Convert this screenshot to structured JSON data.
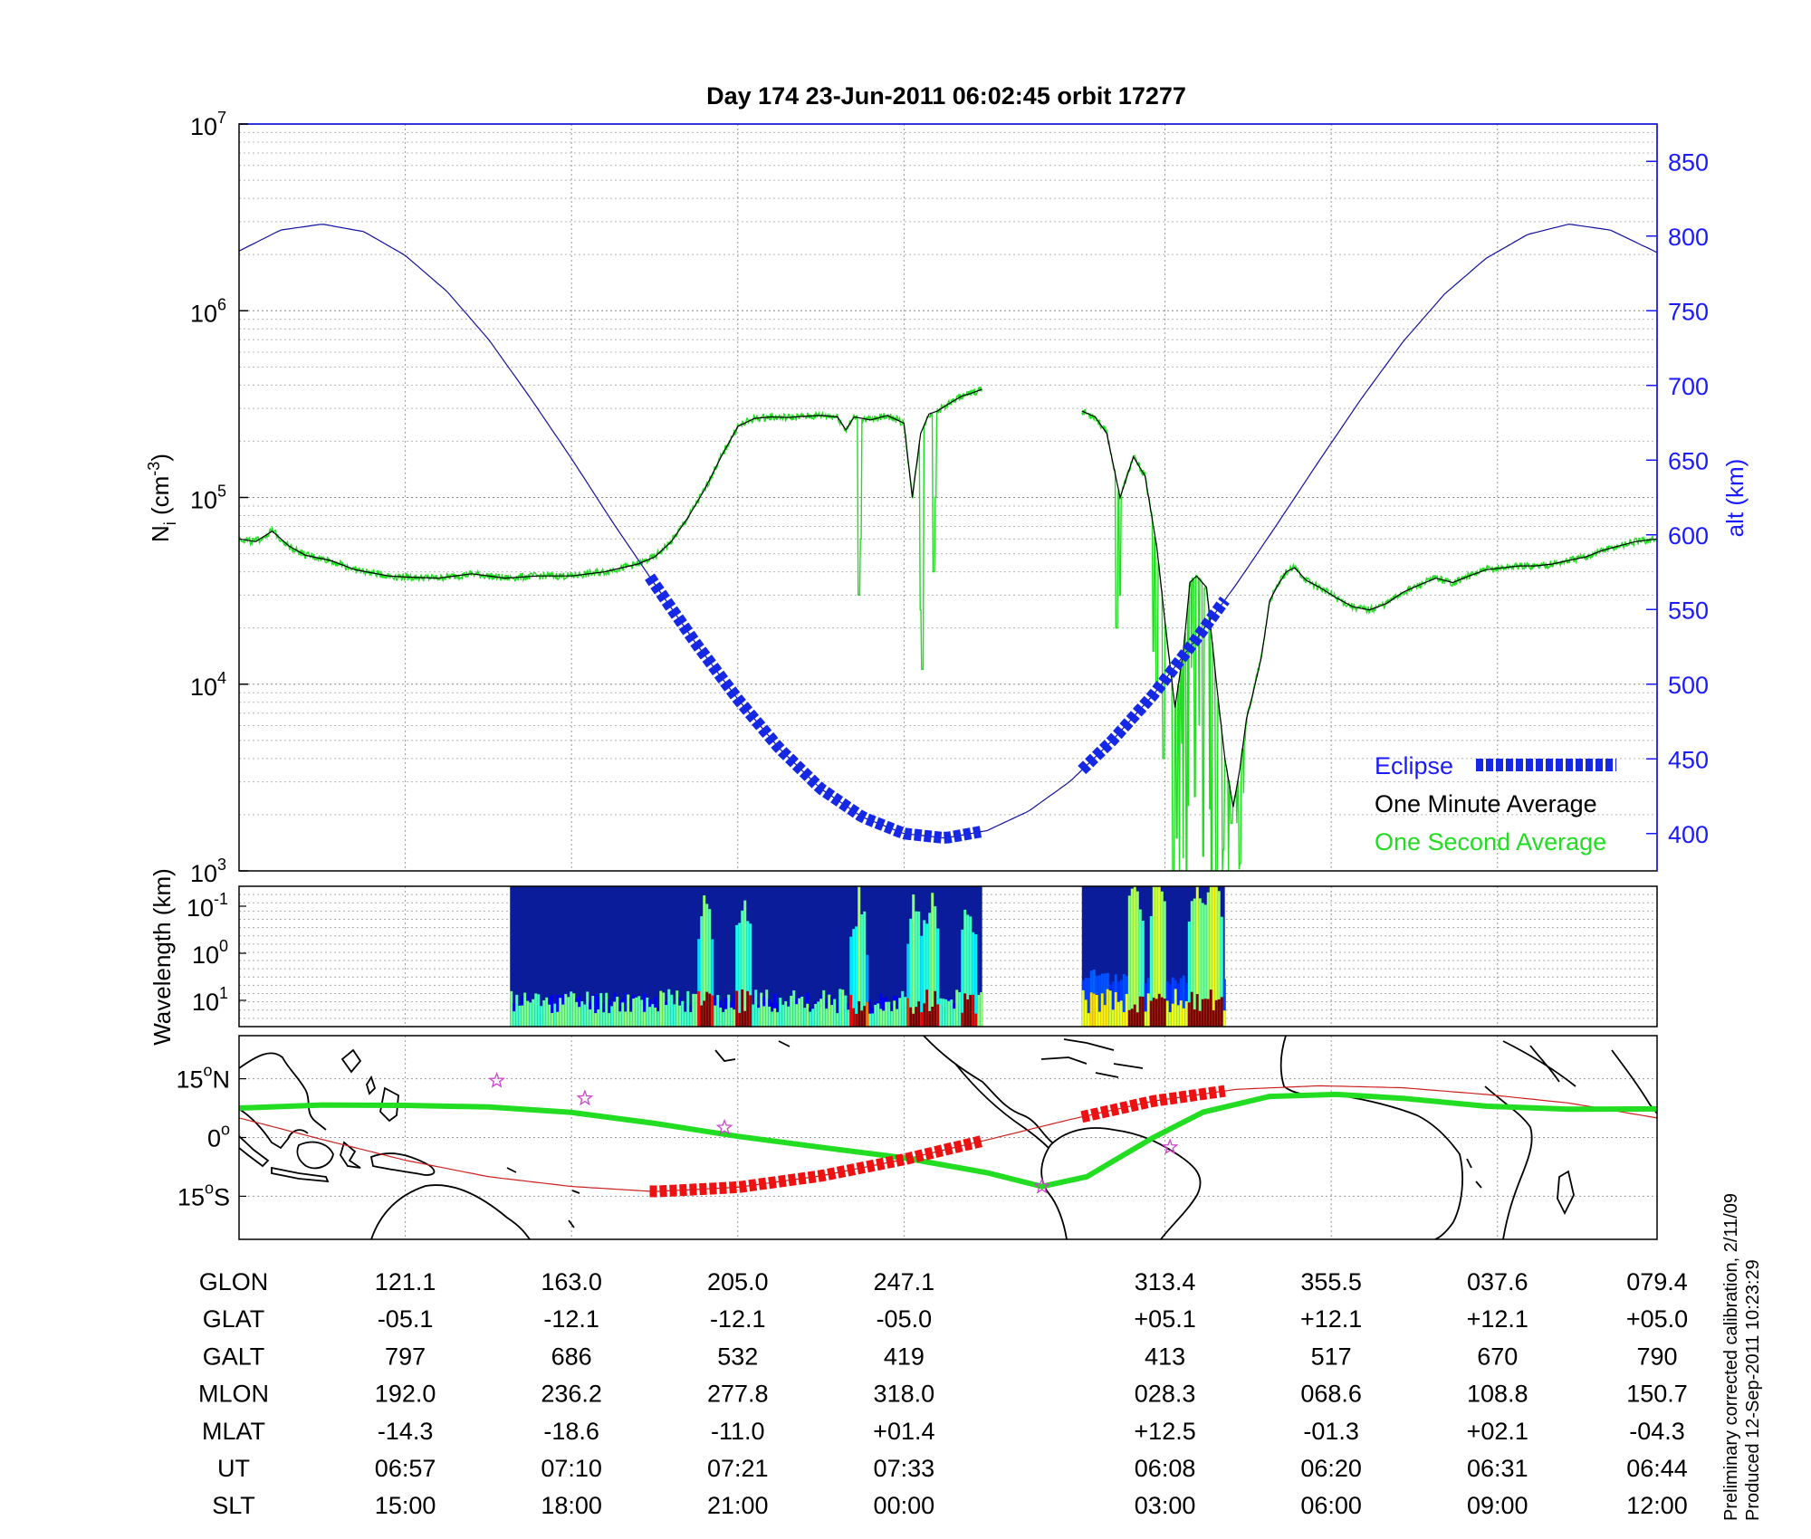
{
  "chart_data": [
    {
      "type": "line",
      "title": "Day 174  23-Jun-2011 06:02:45   orbit 17277",
      "ylabel_main": "N",
      "ylabel_sub": "i",
      "ylabel_unit_open": " (cm",
      "ylabel_unit_exp": "-3",
      "ylabel_unit_close": ")",
      "y2label": "alt (km)",
      "yscale": "log",
      "ylim": [
        1000,
        10000000
      ],
      "yticks": [
        {
          "base": "10",
          "exp": "3"
        },
        {
          "base": "10",
          "exp": "4"
        },
        {
          "base": "10",
          "exp": "5"
        },
        {
          "base": "10",
          "exp": "6"
        },
        {
          "base": "10",
          "exp": "7"
        }
      ],
      "y2lim": [
        375,
        875
      ],
      "y2ticks": [
        "400",
        "450",
        "500",
        "550",
        "600",
        "650",
        "700",
        "750",
        "800",
        "850"
      ],
      "xlim": [
        0,
        8.53
      ],
      "grid": true,
      "legend": [
        {
          "label": "Eclipse",
          "color": "#1428e6"
        },
        {
          "label": "One Minute Average",
          "color": "#000000"
        },
        {
          "label": "One Second Average",
          "color": "#22dd22"
        }
      ],
      "series": [
        {
          "name": "Altitude (alt km)",
          "color": "#1010a0",
          "x": [
            0,
            0.25,
            0.5,
            0.75,
            1.0,
            1.25,
            1.5,
            1.75,
            2.0,
            2.25,
            2.5,
            2.75,
            3.0,
            3.25,
            3.5,
            3.75,
            4.0,
            4.25,
            4.5,
            4.75,
            5.0,
            5.25,
            5.5,
            5.75,
            6.0,
            6.25,
            6.5,
            6.75,
            7.0,
            7.25,
            7.5,
            7.75,
            8.0,
            8.25,
            8.53
          ],
          "values": [
            790,
            804,
            808,
            803,
            787,
            763,
            731,
            692,
            651,
            608,
            567,
            527,
            490,
            457,
            430,
            411,
            400,
            397,
            402,
            415,
            435,
            462,
            493,
            529,
            567,
            608,
            650,
            691,
            729,
            761,
            785,
            801,
            808,
            804,
            789
          ]
        },
        {
          "name": "One Minute Average (Ni)",
          "color": "#000000",
          "x": [
            0,
            0.1,
            0.2,
            0.3,
            0.4,
            0.55,
            0.7,
            0.9,
            1.0,
            1.2,
            1.4,
            1.6,
            1.8,
            2.0,
            2.2,
            2.4,
            2.5,
            2.6,
            2.7,
            2.8,
            2.9,
            3.0,
            3.1,
            3.2,
            3.3,
            3.4,
            3.5,
            3.6,
            3.65,
            3.7,
            3.8,
            3.9,
            4.0,
            4.05,
            4.1,
            4.15,
            4.2,
            4.25,
            4.3,
            4.35,
            4.4,
            4.47
          ],
          "values": [
            60000,
            58000,
            66000,
            55000,
            49000,
            46000,
            41000,
            38000,
            37500,
            37000,
            39000,
            37000,
            38000,
            38000,
            40000,
            44000,
            48000,
            58000,
            78000,
            110000,
            165000,
            240000,
            265000,
            270000,
            268000,
            272000,
            275000,
            270000,
            230000,
            270000,
            260000,
            275000,
            250000,
            100000,
            220000,
            280000,
            290000,
            310000,
            330000,
            350000,
            360000,
            380000
          ]
        },
        {
          "name": "One Minute Average (Ni, segment 2)",
          "color": "#000000",
          "x": [
            5.07,
            5.15,
            5.22,
            5.3,
            5.38,
            5.45,
            5.52,
            5.58,
            5.63,
            5.68,
            5.72,
            5.76,
            5.82,
            5.88,
            5.93,
            5.98,
            6.02,
            6.06,
            6.1,
            6.15,
            6.2,
            6.25,
            6.3,
            6.35,
            6.42,
            6.5,
            6.6,
            6.7,
            6.8,
            6.9,
            7.0,
            7.1,
            7.2,
            7.3,
            7.4,
            7.5,
            7.6,
            7.7,
            7.8,
            7.9,
            8.0,
            8.1,
            8.2,
            8.3,
            8.4,
            8.53
          ],
          "values": [
            290000,
            270000,
            220000,
            100000,
            165000,
            130000,
            55000,
            18000,
            7500,
            15000,
            35000,
            38000,
            33000,
            10000,
            4000,
            2200,
            3500,
            6500,
            9000,
            14000,
            28000,
            34000,
            40000,
            42000,
            36000,
            33000,
            29000,
            26000,
            25000,
            27000,
            31000,
            34000,
            37000,
            35000,
            38000,
            41000,
            42000,
            43000,
            43000,
            44000,
            46000,
            48000,
            52000,
            55000,
            58000,
            60000
          ]
        },
        {
          "name": "One Second Average (Ni)",
          "color": "#22dd22",
          "note": "noisy version of one-minute average with deep dropouts near x 3.73, 4.1, 4.18, 5.28, 5.52, 5.62–6.05"
        },
        {
          "name": "Eclipse",
          "color": "#1428e6",
          "x_ranges": [
            [
              2.47,
              4.47
            ],
            [
              5.07,
              5.93
            ]
          ],
          "note": "dotted overlay on the altitude curve"
        }
      ]
    },
    {
      "type": "heatmap",
      "ylabel": "Wavelength (km)",
      "yticks": [
        {
          "base": "10",
          "exp": "-1"
        },
        {
          "base": "10",
          "exp": "0"
        },
        {
          "base": "10",
          "exp": "1"
        }
      ],
      "yscale": "log",
      "data_x_ranges": [
        [
          1.63,
          4.47
        ],
        [
          5.07,
          5.93
        ]
      ],
      "colormap": "jet",
      "bright_columns_x": [
        2.8,
        3.02,
        3.72,
        4.05,
        4.15,
        4.38,
        5.38,
        5.52,
        5.75,
        5.85
      ]
    },
    {
      "type": "line",
      "subtype": "map",
      "yticks": [
        {
          "deg": "15",
          "hemi": "N"
        },
        {
          "deg": "0",
          "hemi": ""
        },
        {
          "deg": "15",
          "hemi": "S"
        }
      ],
      "ylim": [
        -26,
        26
      ],
      "series": [
        {
          "name": "Magnetic equator (green)",
          "color": "#22dd22",
          "x": [
            0,
            0.5,
            1.0,
            1.5,
            2.0,
            2.5,
            3.0,
            3.5,
            4.0,
            4.5,
            4.83,
            5.1,
            5.3,
            5.5,
            5.8,
            6.2,
            6.6,
            7.0,
            7.5,
            8.0,
            8.53
          ],
          "values": [
            7.5,
            8.3,
            8.2,
            7.8,
            6.4,
            3.6,
            0.3,
            -2.5,
            -5.2,
            -9.0,
            -12.5,
            -10.0,
            -5.0,
            0.0,
            6.5,
            10.5,
            11.0,
            10.0,
            8.0,
            7.2,
            7.3
          ]
        },
        {
          "name": "Satellite ground track (red)",
          "color": "#cc2020",
          "x": [
            0,
            0.5,
            1.0,
            1.5,
            2.0,
            2.5,
            3.0,
            3.5,
            4.0,
            4.5,
            5.0,
            5.5,
            6.0,
            6.5,
            7.0,
            7.5,
            8.0,
            8.53
          ],
          "values": [
            5.0,
            -0.5,
            -5.8,
            -10.0,
            -12.5,
            -13.8,
            -12.7,
            -9.8,
            -5.6,
            -0.6,
            4.6,
            9.3,
            12.3,
            13.2,
            12.7,
            11.0,
            8.8,
            5.0
          ]
        }
      ],
      "eclipse_x_ranges": [
        [
          2.47,
          4.47
        ],
        [
          5.07,
          5.93
        ]
      ],
      "star_markers": [
        {
          "x": 1.55,
          "y": 14.5
        },
        {
          "x": 2.08,
          "y": 10.0
        },
        {
          "x": 2.92,
          "y": 2.5
        },
        {
          "x": 4.83,
          "y": -12.5
        },
        {
          "x": 5.6,
          "y": -2.5
        }
      ]
    }
  ],
  "table": {
    "columns_x": [
      1,
      2,
      3,
      4,
      5.57,
      6.57,
      7.57,
      8.53
    ],
    "rows": [
      {
        "label": "GLON",
        "values": [
          "121.1",
          "163.0",
          "205.0",
          "247.1",
          "313.4",
          "355.5",
          "037.6",
          "079.4"
        ]
      },
      {
        "label": "GLAT",
        "values": [
          "-05.1",
          "-12.1",
          "-12.1",
          "-05.0",
          "+05.1",
          "+12.1",
          "+12.1",
          "+05.0"
        ]
      },
      {
        "label": "GALT",
        "values": [
          "797",
          "686",
          "532",
          "419",
          "413",
          "517",
          "670",
          "790"
        ]
      },
      {
        "label": "MLON",
        "values": [
          "192.0",
          "236.2",
          "277.8",
          "318.0",
          "028.3",
          "068.6",
          "108.8",
          "150.7"
        ]
      },
      {
        "label": "MLAT",
        "values": [
          "-14.3",
          "-18.6",
          "-11.0",
          "+01.4",
          "+12.5",
          "-01.3",
          "+02.1",
          "-04.3"
        ]
      },
      {
        "label": "UT",
        "values": [
          "06:57",
          "07:10",
          "07:21",
          "07:33",
          "06:08",
          "06:20",
          "06:31",
          "06:44"
        ]
      },
      {
        "label": "SLT",
        "values": [
          "15:00",
          "18:00",
          "21:00",
          "00:00",
          "03:00",
          "06:00",
          "09:00",
          "12:00"
        ]
      }
    ]
  },
  "notes": {
    "line1": "Preliminary corrected calibration, 2/11/09",
    "line2": "Produced 12-Sep-2011 10:23:29"
  },
  "colors": {
    "axis_right": "#1a1aff",
    "altitude_line": "#1010a0",
    "one_minute": "#000000",
    "one_second": "#22dd22",
    "eclipse": "#1428e6",
    "track": "#cc2020",
    "eclipse_track": "#ee1111",
    "star": "#cc44cc"
  }
}
